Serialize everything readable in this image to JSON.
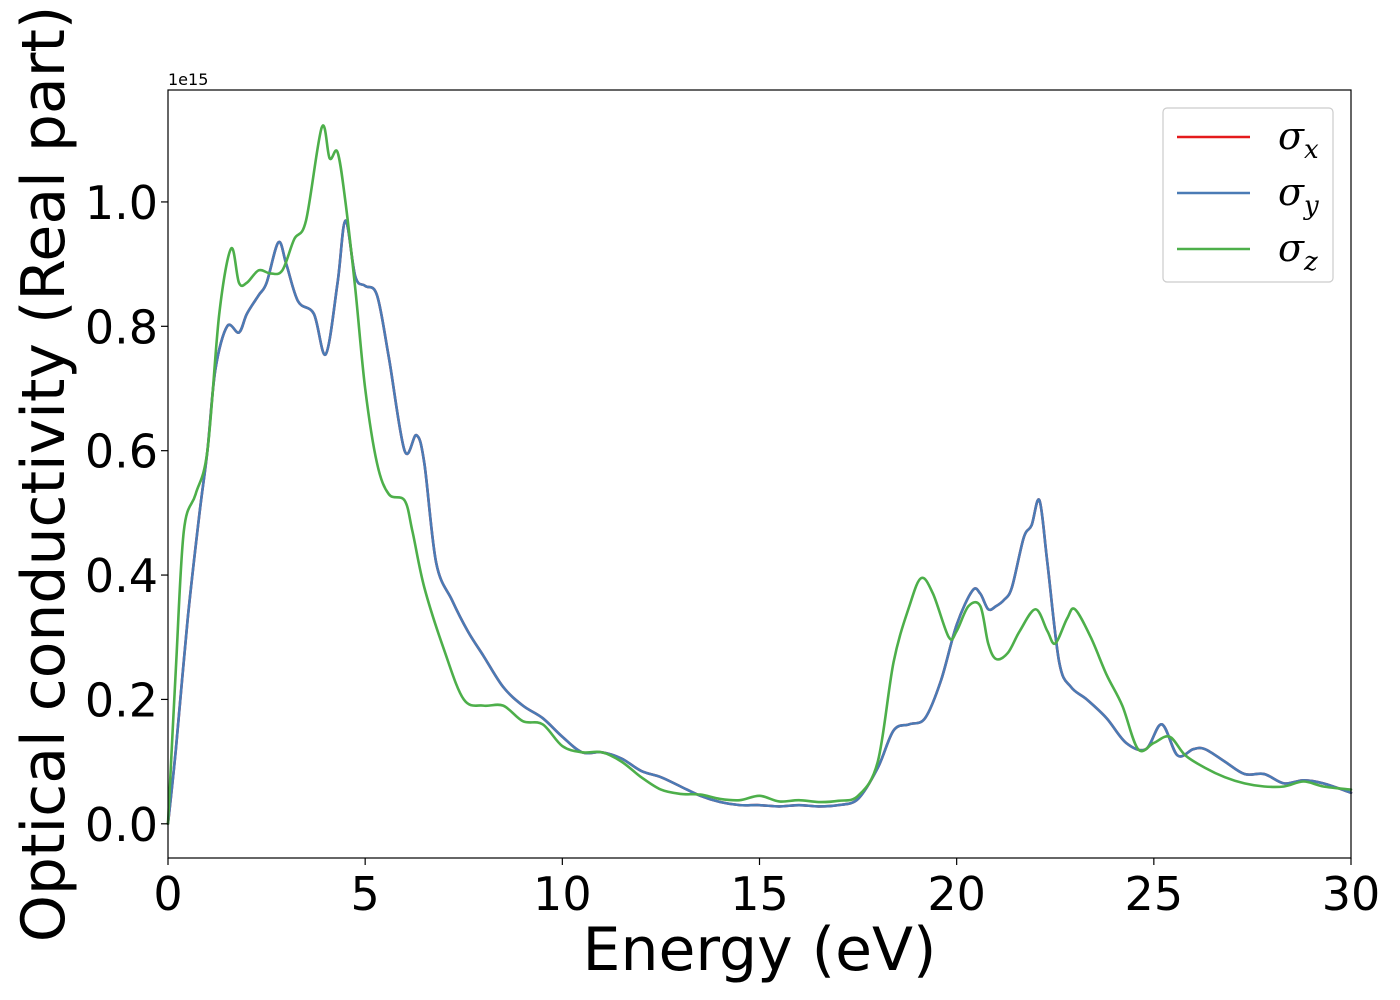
{
  "chart_data": {
    "type": "line",
    "title": "",
    "xlabel": "Energy (eV)",
    "ylabel": "Optical conductivity (Real part)",
    "y_offset_label": "1e15",
    "xlim": [
      0,
      30
    ],
    "ylim": [
      -0.055,
      1.18
    ],
    "x_ticks": [
      0,
      5,
      10,
      15,
      20,
      25,
      30
    ],
    "x_tick_labels": [
      "0",
      "5",
      "10",
      "15",
      "20",
      "25",
      "30"
    ],
    "y_ticks": [
      0.0,
      0.2,
      0.4,
      0.6,
      0.8,
      1.0
    ],
    "y_tick_labels": [
      "0.0",
      "0.2",
      "0.4",
      "0.6",
      "0.8",
      "1.0"
    ],
    "grid": false,
    "legend_position": "top-right",
    "series": [
      {
        "name": "σx",
        "legend_symbol": "σ",
        "legend_subscript": "x",
        "color": "#e41a1c",
        "points": [
          [
            0,
            0
          ],
          [
            0.2,
            0.12
          ],
          [
            0.5,
            0.33
          ],
          [
            0.8,
            0.5
          ],
          [
            1.0,
            0.6
          ],
          [
            1.2,
            0.73
          ],
          [
            1.5,
            0.8
          ],
          [
            1.8,
            0.79
          ],
          [
            2.0,
            0.82
          ],
          [
            2.3,
            0.85
          ],
          [
            2.5,
            0.87
          ],
          [
            2.8,
            0.935
          ],
          [
            3.0,
            0.9
          ],
          [
            3.3,
            0.84
          ],
          [
            3.7,
            0.82
          ],
          [
            4.0,
            0.755
          ],
          [
            4.3,
            0.87
          ],
          [
            4.5,
            0.97
          ],
          [
            4.75,
            0.88
          ],
          [
            5.0,
            0.865
          ],
          [
            5.3,
            0.85
          ],
          [
            5.6,
            0.75
          ],
          [
            6.0,
            0.6
          ],
          [
            6.3,
            0.625
          ],
          [
            6.5,
            0.58
          ],
          [
            6.8,
            0.42
          ],
          [
            7.2,
            0.36
          ],
          [
            7.6,
            0.31
          ],
          [
            8.0,
            0.27
          ],
          [
            8.5,
            0.22
          ],
          [
            9.0,
            0.19
          ],
          [
            9.5,
            0.17
          ],
          [
            10.0,
            0.14
          ],
          [
            10.5,
            0.115
          ],
          [
            11.0,
            0.115
          ],
          [
            11.5,
            0.105
          ],
          [
            12.0,
            0.085
          ],
          [
            12.5,
            0.075
          ],
          [
            13.0,
            0.06
          ],
          [
            13.5,
            0.045
          ],
          [
            14.0,
            0.035
          ],
          [
            14.5,
            0.03
          ],
          [
            15.0,
            0.03
          ],
          [
            15.5,
            0.028
          ],
          [
            16.0,
            0.03
          ],
          [
            16.5,
            0.028
          ],
          [
            17.0,
            0.03
          ],
          [
            17.5,
            0.04
          ],
          [
            18.0,
            0.09
          ],
          [
            18.4,
            0.15
          ],
          [
            18.8,
            0.16
          ],
          [
            19.2,
            0.17
          ],
          [
            19.6,
            0.23
          ],
          [
            20.0,
            0.32
          ],
          [
            20.4,
            0.375
          ],
          [
            20.6,
            0.37
          ],
          [
            20.8,
            0.345
          ],
          [
            21.0,
            0.35
          ],
          [
            21.2,
            0.36
          ],
          [
            21.4,
            0.38
          ],
          [
            21.7,
            0.46
          ],
          [
            21.9,
            0.48
          ],
          [
            22.1,
            0.52
          ],
          [
            22.3,
            0.42
          ],
          [
            22.6,
            0.26
          ],
          [
            22.9,
            0.22
          ],
          [
            23.3,
            0.2
          ],
          [
            23.8,
            0.17
          ],
          [
            24.3,
            0.13
          ],
          [
            24.8,
            0.12
          ],
          [
            25.2,
            0.16
          ],
          [
            25.6,
            0.11
          ],
          [
            26.0,
            0.12
          ],
          [
            26.3,
            0.12
          ],
          [
            26.8,
            0.1
          ],
          [
            27.3,
            0.08
          ],
          [
            27.8,
            0.08
          ],
          [
            28.3,
            0.065
          ],
          [
            28.8,
            0.07
          ],
          [
            29.3,
            0.065
          ],
          [
            30.0,
            0.05
          ]
        ]
      },
      {
        "name": "σy",
        "legend_symbol": "σ",
        "legend_subscript": "y",
        "color": "#4a7bb5",
        "points": [
          [
            0,
            0
          ],
          [
            0.2,
            0.12
          ],
          [
            0.5,
            0.33
          ],
          [
            0.8,
            0.5
          ],
          [
            1.0,
            0.6
          ],
          [
            1.2,
            0.73
          ],
          [
            1.5,
            0.8
          ],
          [
            1.8,
            0.79
          ],
          [
            2.0,
            0.82
          ],
          [
            2.3,
            0.85
          ],
          [
            2.5,
            0.87
          ],
          [
            2.8,
            0.935
          ],
          [
            3.0,
            0.9
          ],
          [
            3.3,
            0.84
          ],
          [
            3.7,
            0.82
          ],
          [
            4.0,
            0.755
          ],
          [
            4.3,
            0.87
          ],
          [
            4.5,
            0.97
          ],
          [
            4.75,
            0.88
          ],
          [
            5.0,
            0.865
          ],
          [
            5.3,
            0.85
          ],
          [
            5.6,
            0.75
          ],
          [
            6.0,
            0.6
          ],
          [
            6.3,
            0.625
          ],
          [
            6.5,
            0.58
          ],
          [
            6.8,
            0.42
          ],
          [
            7.2,
            0.36
          ],
          [
            7.6,
            0.31
          ],
          [
            8.0,
            0.27
          ],
          [
            8.5,
            0.22
          ],
          [
            9.0,
            0.19
          ],
          [
            9.5,
            0.17
          ],
          [
            10.0,
            0.14
          ],
          [
            10.5,
            0.115
          ],
          [
            11.0,
            0.115
          ],
          [
            11.5,
            0.105
          ],
          [
            12.0,
            0.085
          ],
          [
            12.5,
            0.075
          ],
          [
            13.0,
            0.06
          ],
          [
            13.5,
            0.045
          ],
          [
            14.0,
            0.035
          ],
          [
            14.5,
            0.03
          ],
          [
            15.0,
            0.03
          ],
          [
            15.5,
            0.028
          ],
          [
            16.0,
            0.03
          ],
          [
            16.5,
            0.028
          ],
          [
            17.0,
            0.03
          ],
          [
            17.5,
            0.04
          ],
          [
            18.0,
            0.09
          ],
          [
            18.4,
            0.15
          ],
          [
            18.8,
            0.16
          ],
          [
            19.2,
            0.17
          ],
          [
            19.6,
            0.23
          ],
          [
            20.0,
            0.32
          ],
          [
            20.4,
            0.375
          ],
          [
            20.6,
            0.37
          ],
          [
            20.8,
            0.345
          ],
          [
            21.0,
            0.35
          ],
          [
            21.2,
            0.36
          ],
          [
            21.4,
            0.38
          ],
          [
            21.7,
            0.46
          ],
          [
            21.9,
            0.48
          ],
          [
            22.1,
            0.52
          ],
          [
            22.3,
            0.42
          ],
          [
            22.6,
            0.26
          ],
          [
            22.9,
            0.22
          ],
          [
            23.3,
            0.2
          ],
          [
            23.8,
            0.17
          ],
          [
            24.3,
            0.13
          ],
          [
            24.8,
            0.12
          ],
          [
            25.2,
            0.16
          ],
          [
            25.6,
            0.11
          ],
          [
            26.0,
            0.12
          ],
          [
            26.3,
            0.12
          ],
          [
            26.8,
            0.1
          ],
          [
            27.3,
            0.08
          ],
          [
            27.8,
            0.08
          ],
          [
            28.3,
            0.065
          ],
          [
            28.8,
            0.07
          ],
          [
            29.3,
            0.065
          ],
          [
            30.0,
            0.05
          ]
        ]
      },
      {
        "name": "σz",
        "legend_symbol": "σ",
        "legend_subscript": "z",
        "color": "#4daf4a",
        "points": [
          [
            0,
            0
          ],
          [
            0.2,
            0.25
          ],
          [
            0.4,
            0.47
          ],
          [
            0.7,
            0.53
          ],
          [
            1.0,
            0.6
          ],
          [
            1.3,
            0.82
          ],
          [
            1.6,
            0.925
          ],
          [
            1.8,
            0.87
          ],
          [
            2.0,
            0.87
          ],
          [
            2.3,
            0.89
          ],
          [
            2.6,
            0.885
          ],
          [
            2.9,
            0.89
          ],
          [
            3.2,
            0.94
          ],
          [
            3.5,
            0.97
          ],
          [
            3.9,
            1.12
          ],
          [
            4.1,
            1.07
          ],
          [
            4.3,
            1.08
          ],
          [
            4.5,
            1.0
          ],
          [
            4.75,
            0.86
          ],
          [
            5.0,
            0.7
          ],
          [
            5.3,
            0.58
          ],
          [
            5.6,
            0.53
          ],
          [
            6.0,
            0.52
          ],
          [
            6.2,
            0.47
          ],
          [
            6.5,
            0.38
          ],
          [
            7.0,
            0.28
          ],
          [
            7.5,
            0.2
          ],
          [
            8.0,
            0.19
          ],
          [
            8.5,
            0.19
          ],
          [
            9.0,
            0.165
          ],
          [
            9.5,
            0.16
          ],
          [
            10.0,
            0.125
          ],
          [
            10.5,
            0.115
          ],
          [
            11.0,
            0.115
          ],
          [
            11.5,
            0.1
          ],
          [
            12.0,
            0.075
          ],
          [
            12.5,
            0.055
          ],
          [
            13.0,
            0.048
          ],
          [
            13.5,
            0.047
          ],
          [
            14.0,
            0.04
          ],
          [
            14.5,
            0.038
          ],
          [
            15.0,
            0.045
          ],
          [
            15.5,
            0.036
          ],
          [
            16.0,
            0.038
          ],
          [
            16.5,
            0.035
          ],
          [
            17.0,
            0.037
          ],
          [
            17.5,
            0.045
          ],
          [
            18.0,
            0.1
          ],
          [
            18.4,
            0.26
          ],
          [
            18.8,
            0.35
          ],
          [
            19.1,
            0.395
          ],
          [
            19.4,
            0.37
          ],
          [
            19.8,
            0.3
          ],
          [
            20.0,
            0.31
          ],
          [
            20.3,
            0.35
          ],
          [
            20.6,
            0.35
          ],
          [
            20.8,
            0.29
          ],
          [
            21.0,
            0.265
          ],
          [
            21.3,
            0.275
          ],
          [
            21.6,
            0.31
          ],
          [
            22.0,
            0.345
          ],
          [
            22.3,
            0.31
          ],
          [
            22.5,
            0.29
          ],
          [
            22.8,
            0.33
          ],
          [
            23.0,
            0.345
          ],
          [
            23.4,
            0.3
          ],
          [
            23.8,
            0.24
          ],
          [
            24.2,
            0.19
          ],
          [
            24.6,
            0.12
          ],
          [
            25.0,
            0.13
          ],
          [
            25.4,
            0.14
          ],
          [
            25.8,
            0.11
          ],
          [
            26.3,
            0.09
          ],
          [
            26.8,
            0.075
          ],
          [
            27.3,
            0.065
          ],
          [
            27.8,
            0.06
          ],
          [
            28.3,
            0.06
          ],
          [
            28.8,
            0.068
          ],
          [
            29.3,
            0.06
          ],
          [
            30.0,
            0.055
          ]
        ]
      }
    ]
  }
}
